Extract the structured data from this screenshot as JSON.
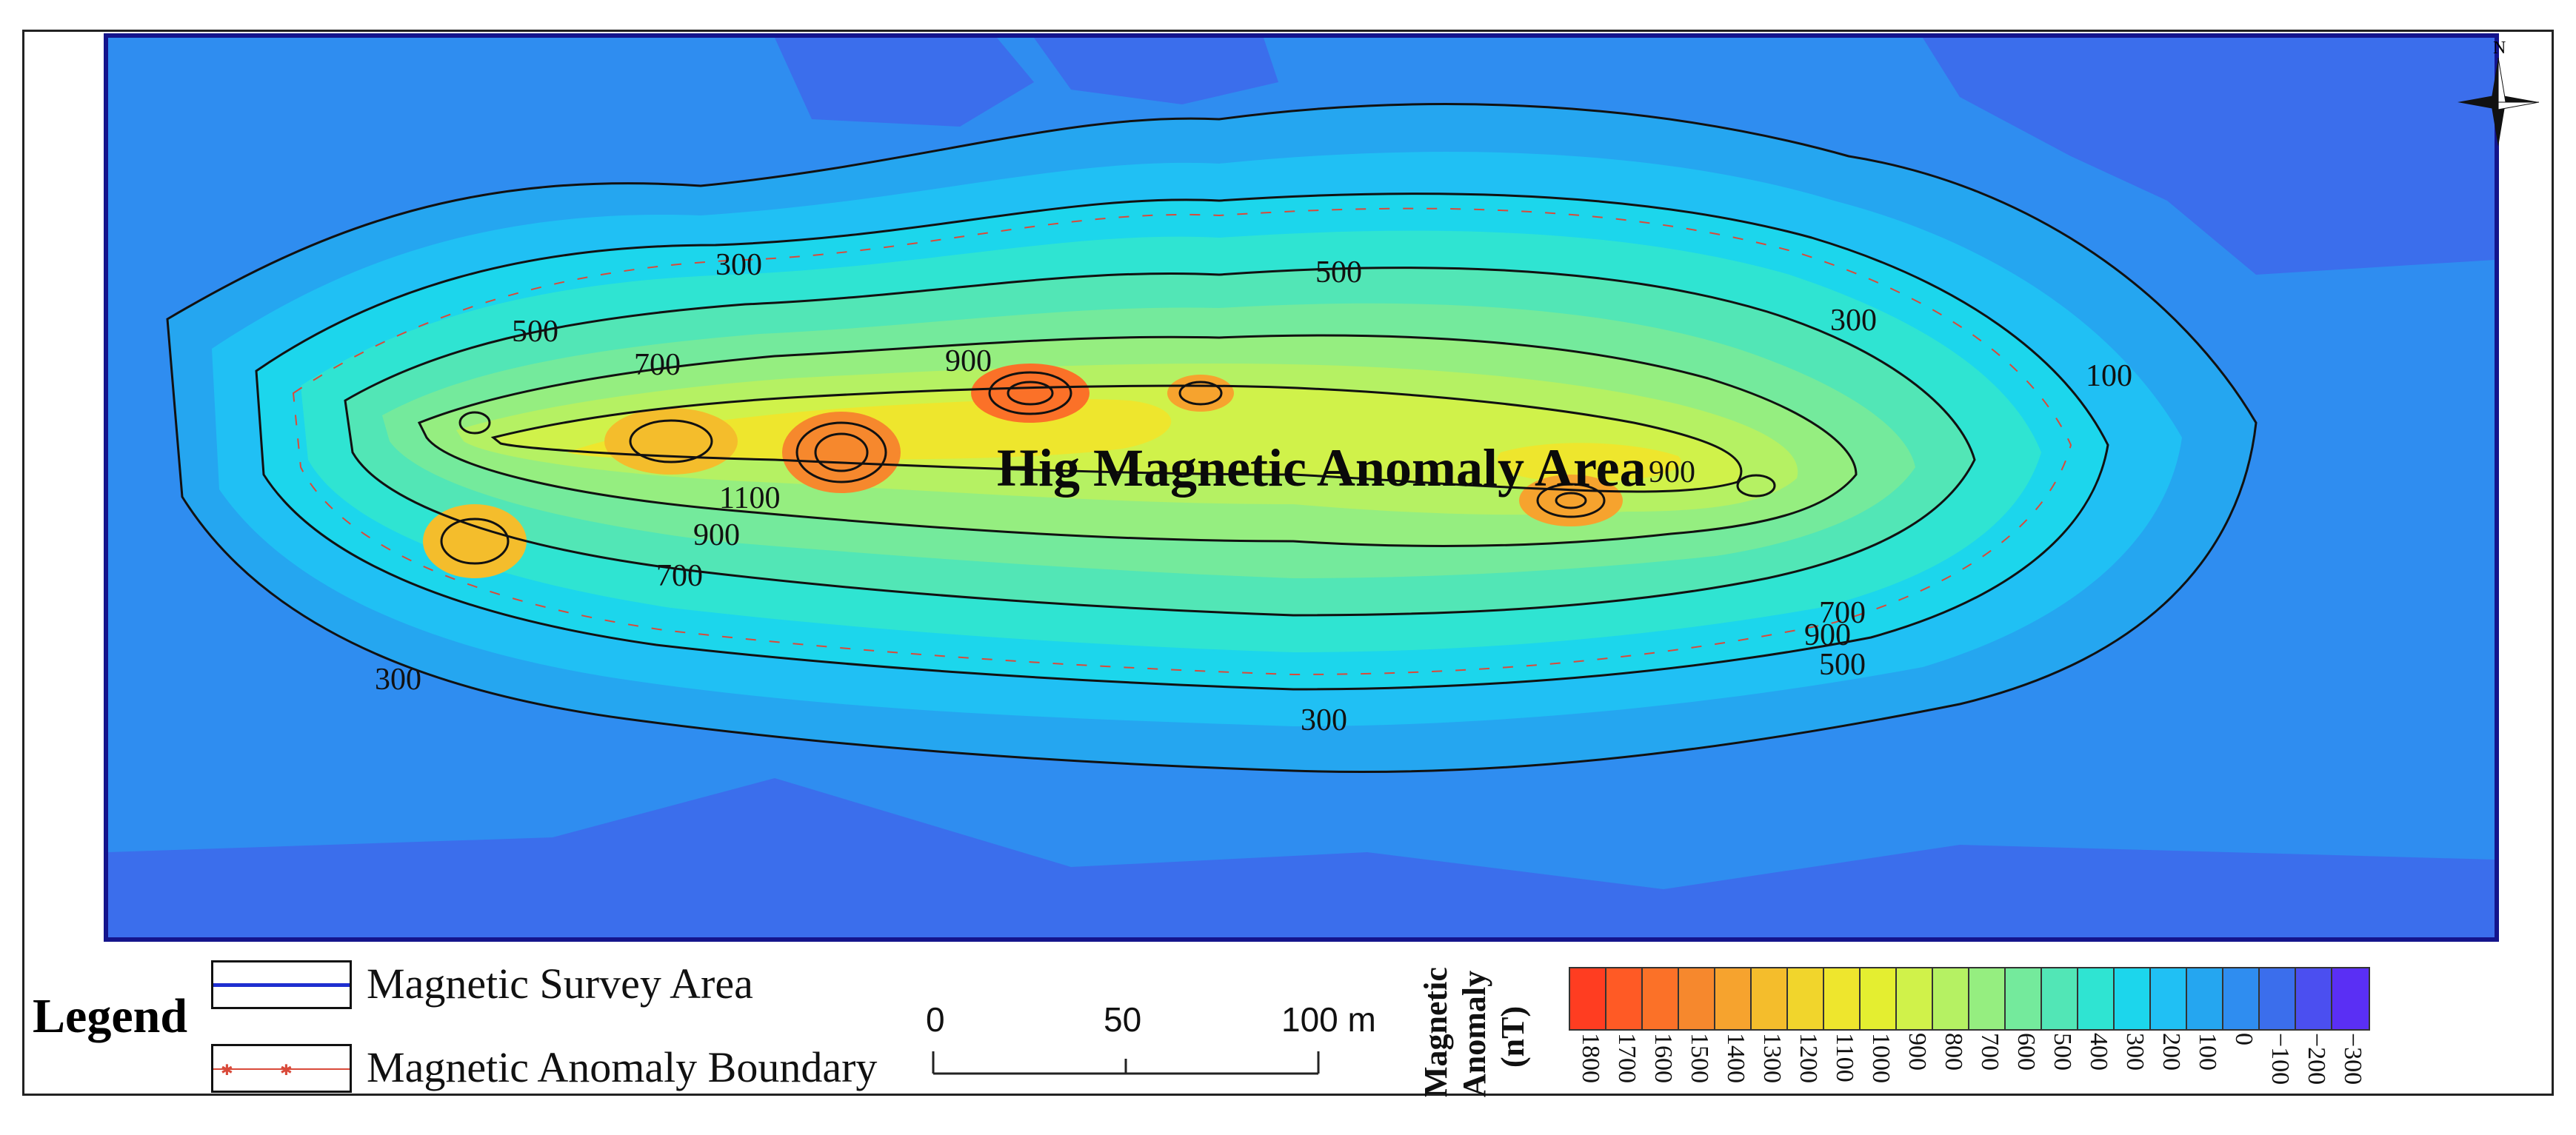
{
  "map": {
    "anomaly_area_label": "Hig Magnetic Anomaly Area",
    "contour_labels": [
      "300",
      "500",
      "700",
      "900",
      "1100",
      "900",
      "700",
      "300",
      "900",
      "500",
      "300",
      "100",
      "900",
      "700",
      "500",
      "300"
    ],
    "north_label": "N"
  },
  "legend": {
    "title": "Legend",
    "items": [
      {
        "label": "Magnetic Survey Area",
        "line_color": "#1f2fd0"
      },
      {
        "label": "Magnetic Anomaly Boundary",
        "line_color": "#d94a3a"
      }
    ]
  },
  "scale_bar": {
    "ticks": [
      "0",
      "50",
      "100 m"
    ]
  },
  "colorbar": {
    "title_line1": "Magnetic",
    "title_line2": "Anomaly",
    "title_line3": "(nT)",
    "levels": [
      "1800",
      "1700",
      "1600",
      "1500",
      "1400",
      "1300",
      "1200",
      "1100",
      "1000",
      "900",
      "800",
      "700",
      "600",
      "500",
      "400",
      "300",
      "200",
      "100",
      "0",
      "−100",
      "−200",
      "−300"
    ],
    "colors": [
      "#ff3d21",
      "#ff5a25",
      "#fb7128",
      "#f6882d",
      "#f6a32e",
      "#f4bd2c",
      "#f1d52c",
      "#eee62d",
      "#e4ee30",
      "#d0f24a",
      "#b5f163",
      "#95ee80",
      "#74ea9c",
      "#52e6b6",
      "#2fe4d2",
      "#1cd6ec",
      "#20c0f4",
      "#25a6f0",
      "#2f8df0",
      "#3b6eec",
      "#4b4ff0",
      "#5a2ff4"
    ]
  }
}
